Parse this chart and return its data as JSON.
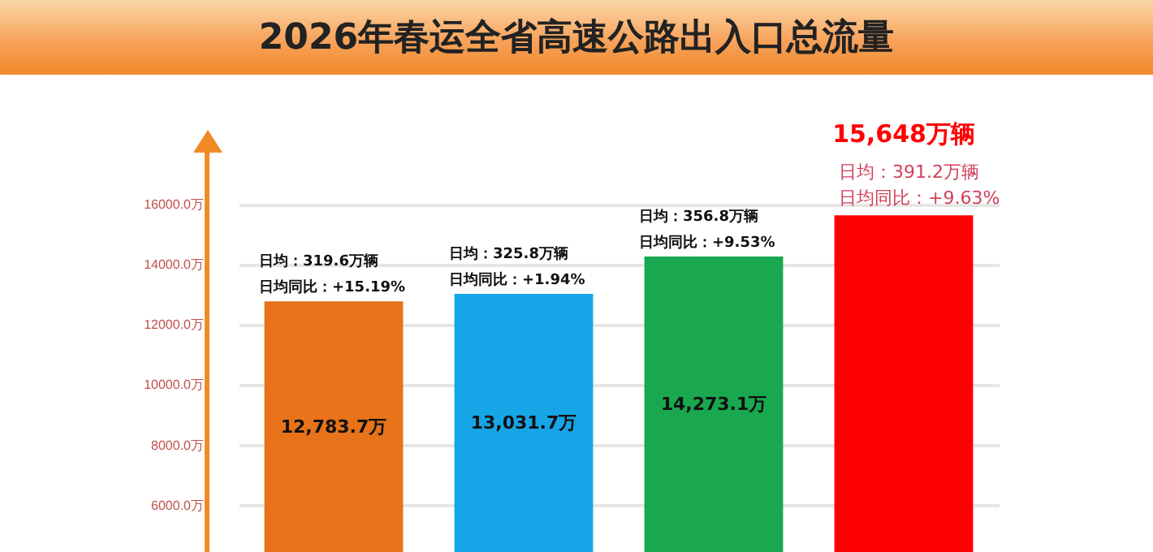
{
  "chart_data": {
    "type": "bar",
    "title": "2026年春运全省高速公路出入口总流量",
    "categories": [
      null,
      null,
      null,
      null
    ],
    "values": [
      12783.7,
      13031.7,
      14273.1,
      15648
    ],
    "colors": [
      "#e8731a",
      "#16a6e8",
      "#19a84f",
      "#ff0000"
    ],
    "value_labels": [
      "12,783.7万",
      "13,031.7万",
      "14,273.1万",
      "15,648万辆"
    ],
    "annotations": [
      "日均：319.6万辆",
      "日均同比：+15.19%",
      "日均：325.8万辆",
      "日均同比：+1.94%",
      "日均：356.8万辆",
      "日均同比：+9.53%",
      "日均：391.2万辆",
      "日均同比：+9.63%"
    ],
    "ylim": [
      4400,
      18000
    ],
    "yticks": [
      {
        "value": 6000,
        "label": "6000.0万"
      },
      {
        "value": 8000,
        "label": "8000.0万"
      },
      {
        "value": 10000,
        "label": "10000.0万"
      },
      {
        "value": 12000,
        "label": "12000.0万"
      },
      {
        "value": 14000,
        "label": "14000.0万"
      },
      {
        "value": 16000,
        "label": "16000.0万"
      }
    ],
    "grid": "y",
    "tick_labels": "y"
  }
}
